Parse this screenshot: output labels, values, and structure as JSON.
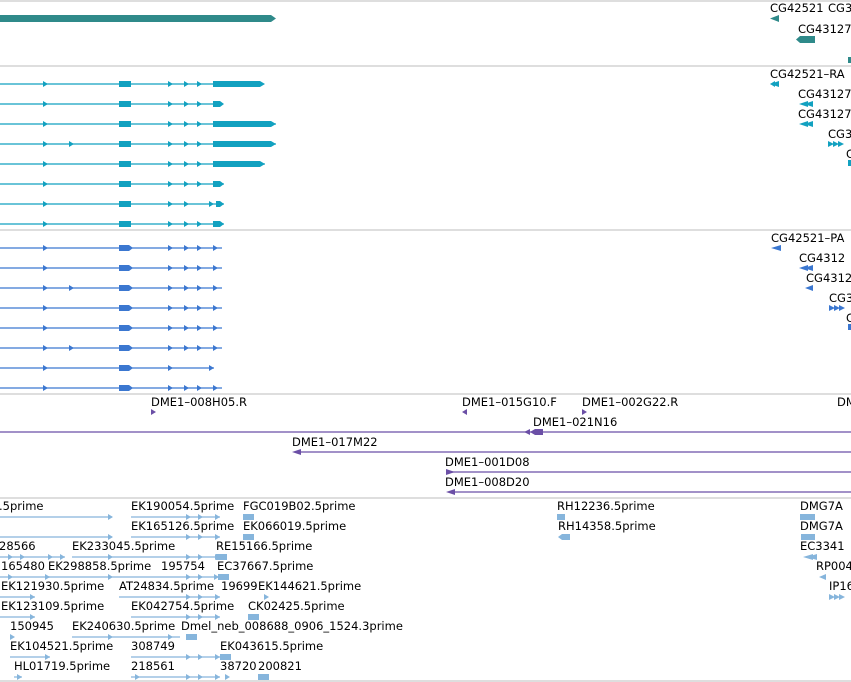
{
  "colors": {
    "gene": "#2f8a8a",
    "transcript": "#12a1c0",
    "cds": "#3b77d0",
    "clone": "#6b4fa6",
    "est": "#86b5dc",
    "divider": "#bdbdbd"
  },
  "tracks": {
    "gene": {
      "labels": [
        "CG42521",
        "CG3",
        "CG43127"
      ]
    },
    "transcript": {
      "labels": [
        "CG42521–RA",
        "CG43127",
        "CG43127",
        "CG3",
        "C"
      ]
    },
    "cds": {
      "labels": [
        "CG42521–PA",
        "CG4312",
        "CG4312",
        "CG3",
        "C"
      ]
    },
    "clones": {
      "labels": [
        "DME1–008H05.R",
        "DME1–015G10.F",
        "DME1–002G22.R",
        "DM",
        "DME1–021N16",
        "DME1–017M22",
        "DME1–001D08",
        "DME1–008D20"
      ]
    },
    "ests": {
      "labels": [
        ".5prime",
        "EK190054.5prime",
        "FGC019B02.5prime",
        "RH12236.5prime",
        "DMG7A",
        "EK165126.5prime",
        "EK066019.5prime",
        "RH14358.5prime",
        "DMG7A",
        "28566",
        "EK233045.5prime",
        "RE15166.5prime",
        "EC3341",
        "165480",
        "EK298858.5prime",
        "195754",
        "EC37667.5prime",
        "RP004",
        "EK121930.5prime",
        "AT24834.5prime",
        "19699",
        "EK144621.5prime",
        "IP16",
        "EK123109.5prime",
        "EK042754.5prime",
        "CK02425.5prime",
        "150945",
        "EK240630.5prime",
        "Dmel_neb_008688_0906_1524.3prime",
        "EK104521.5prime",
        "308749",
        "EK043615.5prime",
        "HL01719.5prime",
        "218561",
        "38720",
        "200821"
      ]
    }
  }
}
